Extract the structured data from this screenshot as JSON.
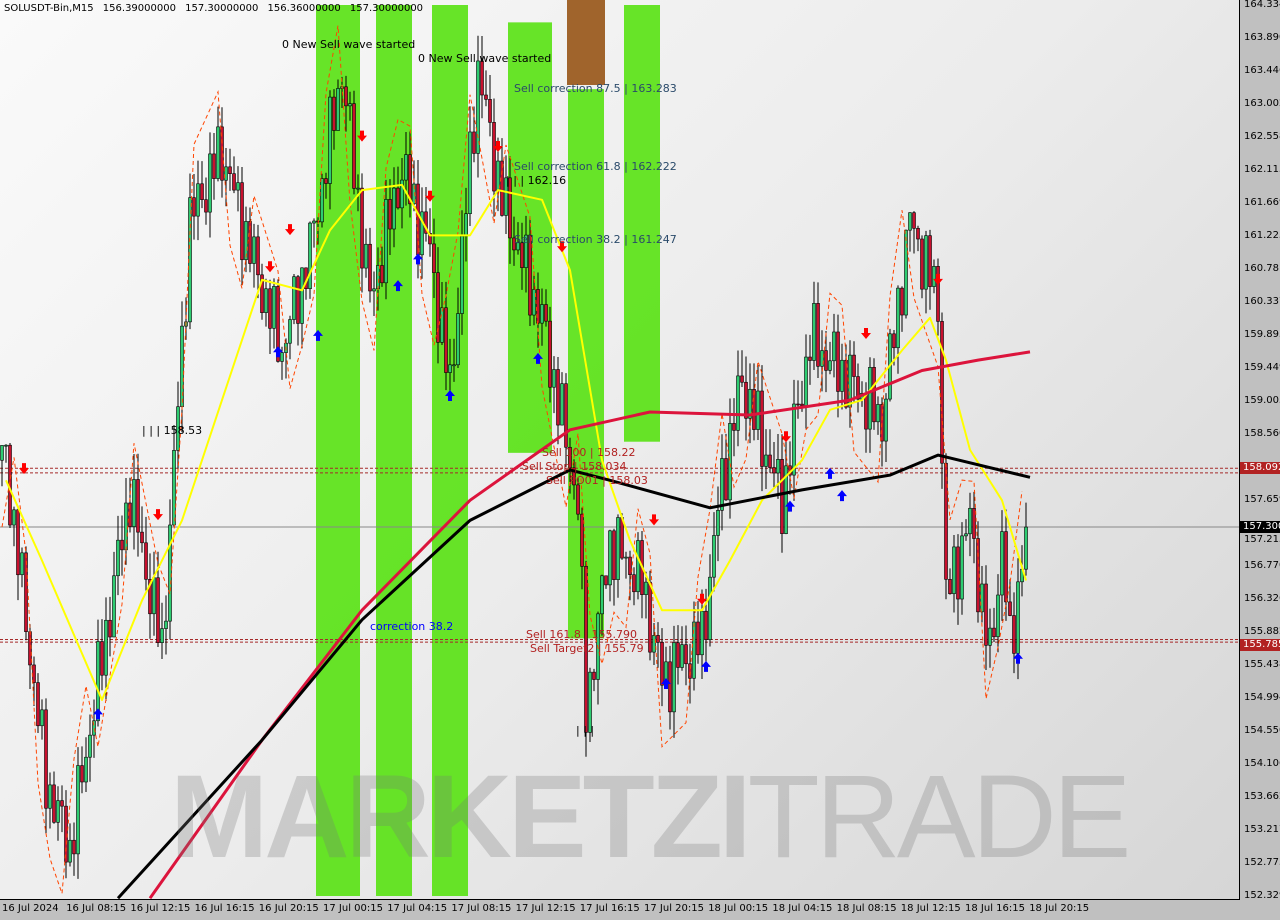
{
  "header": {
    "symbol": "SOLUSDT-Bin,M15",
    "open": "156.39000000",
    "high": "157.30000000",
    "low": "156.36000000",
    "close": "157.30000000"
  },
  "watermark": {
    "text_bold": "MARKETZI",
    "text_light": "TRADE"
  },
  "colors": {
    "bull": "#2ecc71",
    "bear": "#c8102e",
    "zone": "#5fe31c",
    "zone_brown": "#a0642c",
    "ma_fast": "#ffff00",
    "ma_red": "#dc143c",
    "ma_black": "#000000",
    "stop": "#ff4500",
    "arrow_down": "#ff0000",
    "arrow_up": "#0000ff"
  },
  "chart_data": {
    "type": "candlestick",
    "timeframe": "M15",
    "ylim": [
      152.329,
      164.334
    ],
    "y_ticks": [
      "164.334",
      "163.890",
      "163.446",
      "163.002",
      "162.558",
      "162.113",
      "161.669",
      "161.225",
      "160.781",
      "160.337",
      "159.893",
      "159.449",
      "159.005",
      "158.560",
      "157.659",
      "157.215",
      "156.770",
      "156.326",
      "155.882",
      "155.438",
      "154.994",
      "154.550",
      "154.106",
      "153.662",
      "153.217",
      "152.773",
      "152.329"
    ],
    "x_ticks": [
      "16 Jul 2024",
      "16 Jul 08:15",
      "16 Jul 12:15",
      "16 Jul 16:15",
      "16 Jul 20:15",
      "17 Jul 00:15",
      "17 Jul 04:15",
      "17 Jul 08:15",
      "17 Jul 12:15",
      "17 Jul 16:15",
      "17 Jul 20:15",
      "18 Jul 00:15",
      "18 Jul 04:15",
      "18 Jul 08:15",
      "18 Jul 12:15",
      "18 Jul 16:15",
      "18 Jul 20:15"
    ],
    "price_path": [
      [
        1,
        158.2
      ],
      [
        11,
        153.89
      ],
      [
        17,
        152.95
      ],
      [
        24,
        155.24
      ],
      [
        32,
        157.8
      ],
      [
        40,
        155.64
      ],
      [
        47,
        161.44
      ],
      [
        55,
        162.38
      ],
      [
        62,
        161.03
      ],
      [
        70,
        159.68
      ],
      [
        77,
        161.03
      ],
      [
        85,
        163.46
      ],
      [
        92,
        160.36
      ],
      [
        100,
        162.11
      ],
      [
        107,
        161.03
      ],
      [
        112,
        159.14
      ],
      [
        119,
        163.46
      ],
      [
        125,
        161.71
      ],
      [
        135,
        160.09
      ],
      [
        144,
        157.66
      ],
      [
        146,
        154.83
      ],
      [
        152,
        157.12
      ],
      [
        160,
        156.58
      ],
      [
        165,
        155.24
      ],
      [
        175,
        155.78
      ],
      [
        180,
        157.93
      ],
      [
        185,
        159.28
      ],
      [
        195,
        157.66
      ],
      [
        202,
        159.82
      ],
      [
        212,
        159.28
      ],
      [
        220,
        158.74
      ],
      [
        227,
        161.44
      ],
      [
        234,
        160.36
      ],
      [
        236,
        156.32
      ],
      [
        242,
        157.39
      ],
      [
        247,
        155.51
      ],
      [
        250,
        157.12
      ],
      [
        252,
        155.64
      ],
      [
        256,
        157.3
      ]
    ],
    "ma_yellow": [
      [
        1,
        157.93
      ],
      [
        10,
        156.85
      ],
      [
        25,
        154.97
      ],
      [
        35,
        156.31
      ],
      [
        45,
        157.39
      ],
      [
        55,
        159.01
      ],
      [
        65,
        160.63
      ],
      [
        75,
        160.49
      ],
      [
        82,
        161.3
      ],
      [
        90,
        161.84
      ],
      [
        100,
        161.91
      ],
      [
        107,
        161.23
      ],
      [
        117,
        161.23
      ],
      [
        124,
        161.84
      ],
      [
        135,
        161.71
      ],
      [
        142,
        160.76
      ],
      [
        150,
        158.2
      ],
      [
        157,
        157.12
      ],
      [
        165,
        156.18
      ],
      [
        175,
        156.18
      ],
      [
        182,
        156.85
      ],
      [
        190,
        157.66
      ],
      [
        200,
        158.2
      ],
      [
        207,
        158.88
      ],
      [
        215,
        159.01
      ],
      [
        225,
        159.68
      ],
      [
        232,
        160.12
      ],
      [
        236,
        159.55
      ],
      [
        242,
        158.34
      ],
      [
        250,
        157.66
      ],
      [
        256,
        156.58
      ]
    ],
    "ma_red": [
      [
        37,
        152.3
      ],
      [
        65,
        154.43
      ],
      [
        90,
        156.18
      ],
      [
        117,
        157.66
      ],
      [
        142,
        158.61
      ],
      [
        162,
        158.85
      ],
      [
        187,
        158.81
      ],
      [
        212,
        159.01
      ],
      [
        230,
        159.41
      ],
      [
        244,
        159.55
      ],
      [
        257,
        159.66
      ]
    ],
    "ma_black": [
      [
        29,
        152.3
      ],
      [
        65,
        154.43
      ],
      [
        90,
        156.05
      ],
      [
        117,
        157.39
      ],
      [
        142,
        158.07
      ],
      [
        152,
        157.93
      ],
      [
        177,
        157.56
      ],
      [
        200,
        157.8
      ],
      [
        222,
        158.0
      ],
      [
        234,
        158.27
      ],
      [
        257,
        157.97
      ]
    ],
    "sell_arrows": [
      [
        5.5,
        158.04
      ],
      [
        39,
        157.42
      ],
      [
        67,
        160.76
      ],
      [
        72,
        161.26
      ],
      [
        90,
        162.52
      ],
      [
        107,
        161.71
      ],
      [
        124,
        162.38
      ],
      [
        140,
        161.03
      ],
      [
        163,
        157.35
      ],
      [
        175,
        156.28
      ],
      [
        196,
        158.47
      ],
      [
        216,
        159.86
      ],
      [
        234,
        160.59
      ]
    ],
    "buy_arrows": [
      [
        24,
        154.83
      ],
      [
        69,
        159.71
      ],
      [
        79,
        159.93
      ],
      [
        99,
        160.6
      ],
      [
        104,
        160.96
      ],
      [
        112,
        159.12
      ],
      [
        134,
        159.62
      ],
      [
        166,
        155.24
      ],
      [
        176,
        155.47
      ],
      [
        197,
        157.63
      ],
      [
        207,
        158.07
      ],
      [
        210,
        157.77
      ],
      [
        254,
        155.58
      ]
    ],
    "zones": [
      {
        "from": 79,
        "to": 90,
        "top": 164.334,
        "bottom": 152.329
      },
      {
        "from": 94,
        "to": 103,
        "top": 164.334,
        "bottom": 152.329
      },
      {
        "from": 108,
        "to": 117,
        "top": 164.334,
        "bottom": 152.329
      },
      {
        "from": 127,
        "to": 138,
        "top": 164.1,
        "bottom": 158.3
      },
      {
        "from": 142,
        "to": 151,
        "top": 163.2,
        "bottom": 155.8
      },
      {
        "from": 156,
        "to": 165,
        "top": 164.334,
        "bottom": 158.45
      }
    ],
    "levels": [
      {
        "price": 158.092,
        "label": "158.092",
        "style": "dashed"
      },
      {
        "price": 158.03,
        "label": "",
        "style": "dashed"
      },
      {
        "price": 157.3,
        "label": "157.300",
        "style": "solid"
      },
      {
        "price": 155.785,
        "label": "155.785",
        "style": "dashed"
      },
      {
        "price": 155.75,
        "label": "",
        "style": "dashed"
      }
    ],
    "annotations": [
      {
        "text": "0 New Sell wave started",
        "color": "#000000",
        "bar": 70,
        "price": 163.8
      },
      {
        "text": "0 New Sell wave started",
        "color": "#000000",
        "bar": 104,
        "price": 163.6
      },
      {
        "text": "Sell correction 87.5 | 163.283",
        "color": "#2a4a6a",
        "bar": 128,
        "price": 163.2
      },
      {
        "text": "Sell correction 61.8 | 162.222",
        "color": "#2a4a6a",
        "bar": 128,
        "price": 162.15
      },
      {
        "text": "| | | 162.16",
        "color": "#000000",
        "bar": 126,
        "price": 162.05
      },
      {
        "text": "Sell correction 38.2 | 161.247",
        "color": "#2a4a6a",
        "bar": 128,
        "price": 161.17
      },
      {
        "text": "| | | 158.53",
        "color": "#000000",
        "bar": 35,
        "price": 158.6
      },
      {
        "text": "Sell 100 | 158.22",
        "color": "#b22222",
        "bar": 135,
        "price": 158.3
      },
      {
        "text": "Sell Stop | 158.034",
        "color": "#b22222",
        "bar": 130,
        "price": 158.13
      },
      {
        "text": "Sell PO01 | 158.03",
        "color": "#b22222",
        "bar": 136,
        "price": 158.02
      },
      {
        "text": "correction 38.2",
        "color": "#0000ff",
        "bar": 92,
        "price": 155.95
      },
      {
        "text": "Sell 161.8 | 155.790",
        "color": "#b22222",
        "bar": 131,
        "price": 155.85
      },
      {
        "text": "Sell Target2 | 155.79",
        "color": "#b22222",
        "bar": 132,
        "price": 155.73
      },
      {
        "text": "| | |",
        "color": "#000000",
        "bar": 143.5,
        "price": 154.55
      }
    ],
    "current_price": 157.3
  }
}
